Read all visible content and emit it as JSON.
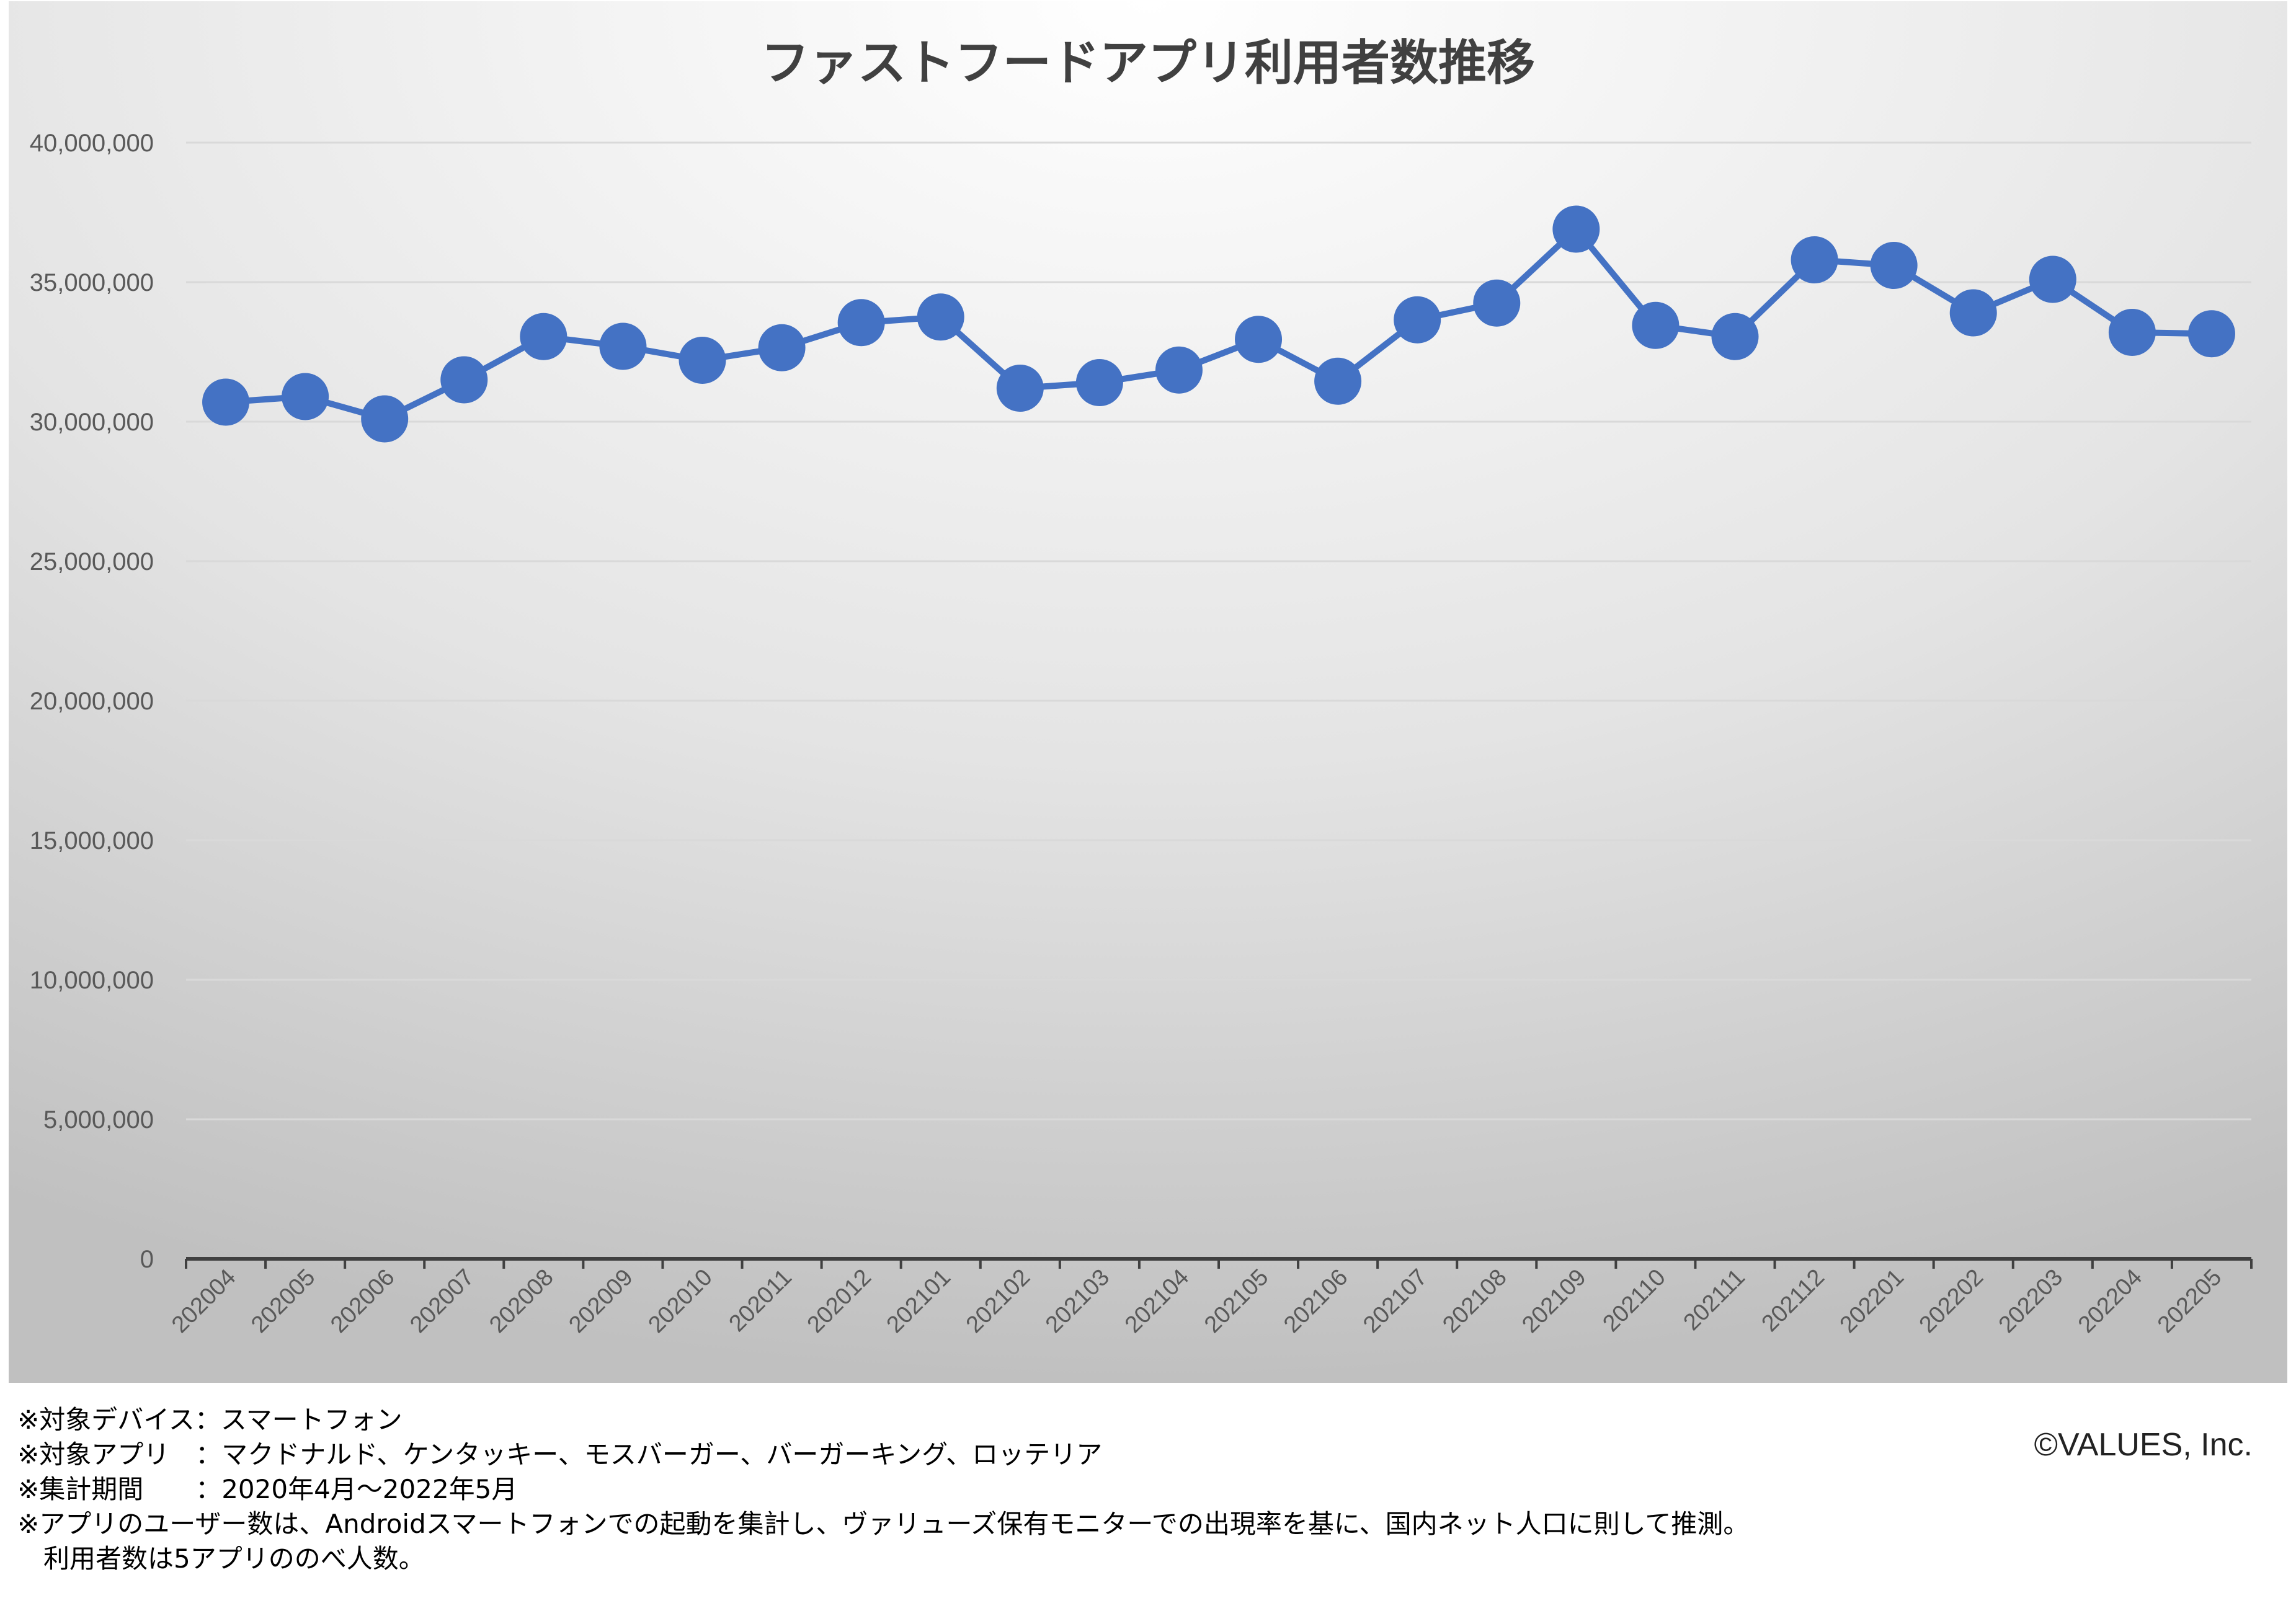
{
  "chart_data": {
    "type": "line",
    "title": "ファストフードアプリ利用者数推移",
    "xlabel": "",
    "ylabel": "",
    "ylim": [
      0,
      40000000
    ],
    "yticks": [
      "0",
      "5,000,000",
      "10,000,000",
      "15,000,000",
      "20,000,000",
      "25,000,000",
      "30,000,000",
      "35,000,000",
      "40,000,000"
    ],
    "grid": true,
    "legend": "none",
    "categories": [
      "202004",
      "202005",
      "202006",
      "202007",
      "202008",
      "202009",
      "202010",
      "202011",
      "202012",
      "202101",
      "202102",
      "202103",
      "202104",
      "202105",
      "202106",
      "202107",
      "202108",
      "202109",
      "202110",
      "202111",
      "202112",
      "202201",
      "202202",
      "202203",
      "202204",
      "202205"
    ],
    "series": [
      {
        "color": "#4472c4",
        "values": [
          30700000,
          30900000,
          30100000,
          31500000,
          33050000,
          32700000,
          32200000,
          32650000,
          33550000,
          33750000,
          31200000,
          31400000,
          31850000,
          32950000,
          31450000,
          33650000,
          34250000,
          36900000,
          33450000,
          33050000,
          35800000,
          35600000,
          33900000,
          35100000,
          33200000,
          33150000
        ]
      }
    ]
  },
  "notes": [
    "※対象デバイス：スマートフォン",
    "※対象アプリ　：マクドナルド、ケンタッキー、モスバーガー、バーガーキング、ロッテリア",
    "※集計期間　　：2020年4月～2022年5月",
    "※アプリのユーザー数は、Androidスマートフォンでの起動を集計し、ヴァリューズ保有モニターでの出現率を基に、国内ネット人口に則して推測。",
    "　利用者数は5アプリののべ人数。"
  ],
  "copyright": "©VALUES, Inc.",
  "colors": {
    "line": "#4472c4",
    "marker": "#4472c4",
    "grid": "#d9d9d9",
    "axis": "#404040",
    "plot_bg_center": "#ffffff",
    "plot_bg_edge": "#bfbfbf"
  }
}
